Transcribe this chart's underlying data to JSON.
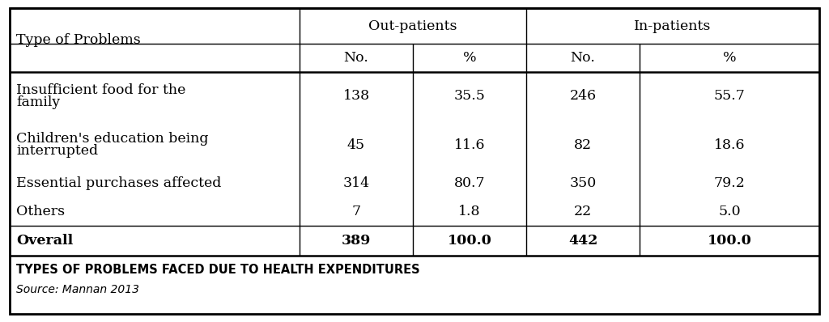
{
  "title": "TYPES OF PROBLEMS FACED DUE TO HEALTH EXPENDITURES",
  "source": "Source: Mannan 2013",
  "rows": [
    [
      "Insufficient food for the\nfamily",
      "138",
      "35.5",
      "246",
      "55.7"
    ],
    [
      "Children's education being\ninterrupted",
      "45",
      "11.6",
      "82",
      "18.6"
    ],
    [
      "Essential purchases affected",
      "314",
      "80.7",
      "350",
      "79.2"
    ],
    [
      "Others",
      "7",
      "1.8",
      "22",
      "5.0"
    ],
    [
      "Overall",
      "389",
      "100.0",
      "442",
      "100.0"
    ]
  ],
  "background_color": "#ffffff",
  "border_color": "#000000",
  "text_color": "#000000",
  "font_size": 12.5,
  "small_font_size": 10.5,
  "caption_font_size": 10.5,
  "source_font_size": 10.0
}
